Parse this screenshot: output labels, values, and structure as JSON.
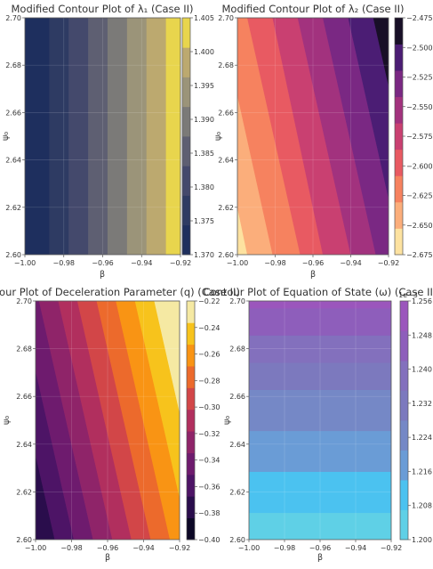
{
  "chart_data": [
    {
      "type": "contour",
      "title": "Modified Contour Plot of λ₁ (Case II)",
      "xlabel": "β",
      "ylabel": "ψ₀",
      "xlim": [
        -1.0,
        -0.92
      ],
      "ylim": [
        2.6,
        2.7
      ],
      "x_ticks": [
        "−1.00",
        "−0.98",
        "−0.96",
        "−0.94",
        "−0.92"
      ],
      "y_ticks": [
        "2.60",
        "2.62",
        "2.64",
        "2.66",
        "2.68",
        "2.70"
      ],
      "colorbar_ticks": [
        "1.405",
        "1.400",
        "1.395",
        "1.390",
        "1.385",
        "1.380",
        "1.375",
        "1.370"
      ],
      "colormap": "cividis",
      "colors": [
        "#1e2f5e",
        "#2e3b63",
        "#44496c",
        "#5e5f72",
        "#7b7a78",
        "#9b9479",
        "#bca96f",
        "#e8d54d"
      ],
      "bands": [
        {
          "x0": -1.0,
          "x1": -0.9875
        },
        {
          "x0": -0.9875,
          "x1": -0.9775
        },
        {
          "x0": -0.9775,
          "x1": -0.9675
        },
        {
          "x0": -0.9675,
          "x1": -0.9575
        },
        {
          "x0": -0.9575,
          "x1": -0.9475
        },
        {
          "x0": -0.9475,
          "x1": -0.9375
        },
        {
          "x0": -0.9375,
          "x1": -0.9275
        },
        {
          "x0": -0.9275,
          "x1": -0.92
        }
      ]
    },
    {
      "type": "contour",
      "title": "Modified Contour Plot of λ₂ (Case II)",
      "xlabel": "β",
      "ylabel": "ψ₀",
      "xlim": [
        -1.0,
        -0.92
      ],
      "ylim": [
        2.6,
        2.7
      ],
      "x_ticks": [
        "−1.00",
        "−0.98",
        "−0.96",
        "−0.94",
        "−0.92"
      ],
      "y_ticks": [
        "2.60",
        "2.62",
        "2.64",
        "2.66",
        "2.68",
        "2.70"
      ],
      "colorbar_ticks": [
        "−2.475",
        "−2.500",
        "−2.525",
        "−2.550",
        "−2.575",
        "−2.600",
        "−2.625",
        "−2.650",
        "−2.675"
      ],
      "colormap": "magma",
      "colors": [
        "#fde2a0",
        "#fbae7b",
        "#f6825f",
        "#e85a62",
        "#c94071",
        "#a2327e",
        "#7a2883",
        "#4b1d74",
        "#180f27"
      ],
      "band_lines": [
        {
          "y": 2.6,
          "x": [
            -0.9947,
            -0.9813,
            -0.9667,
            -0.9547,
            -0.94,
            -0.9267,
            -0.9133,
            -0.9
          ]
        },
        {
          "y": 2.7,
          "x": [
            -1.021,
            -1.009,
            -0.9947,
            -0.9813,
            -0.968,
            -0.9547,
            -0.9413,
            -0.928
          ]
        }
      ]
    },
    {
      "type": "contour",
      "title": "Contour Plot of Deceleration Parameter (q) (Case II)",
      "xlabel": "β",
      "ylabel": "ψ₀",
      "xlim": [
        -1.0,
        -0.92
      ],
      "ylim": [
        2.6,
        2.7
      ],
      "x_ticks": [
        "−1.00",
        "−0.98",
        "−0.96",
        "−0.94",
        "−0.92"
      ],
      "y_ticks": [
        "2.60",
        "2.62",
        "2.64",
        "2.66",
        "2.68",
        "2.70"
      ],
      "colorbar_ticks": [
        "−0.22",
        "−0.24",
        "−0.26",
        "−0.28",
        "−0.30",
        "−0.32",
        "−0.34",
        "−0.36",
        "−0.38",
        "−0.40"
      ],
      "colormap": "inferno",
      "colors": [
        "#0c0826",
        "#2a0d4c",
        "#4d1466",
        "#6e1b6e",
        "#8f2469",
        "#b12f5e",
        "#d24648",
        "#ec6a2c",
        "#f99414",
        "#f7c31c",
        "#f5e9a3"
      ],
      "band_lines": [
        {
          "y": 2.6,
          "x": [
            -1.0,
            -0.9893,
            -0.9787,
            -0.968,
            -0.9573,
            -0.9467,
            -0.936,
            -0.9253,
            -0.9147,
            -0.904
          ]
        },
        {
          "y": 2.7,
          "x": [
            -1.03,
            -1.0193,
            -1.0087,
            -0.998,
            -0.9873,
            -0.9767,
            -0.966,
            -0.9553,
            -0.9447,
            -0.934
          ]
        }
      ]
    },
    {
      "type": "contour",
      "title": "Contour Plot of Equation of State (ω) (Case II)",
      "xlabel": "β",
      "ylabel": "ψ₀",
      "xlim": [
        -1.0,
        -0.92
      ],
      "ylim": [
        2.6,
        2.7
      ],
      "x_ticks": [
        "−1.00",
        "−0.98",
        "−0.96",
        "−0.94",
        "−0.92"
      ],
      "y_ticks": [
        "2.60",
        "2.62",
        "2.64",
        "2.66",
        "2.68",
        "2.70"
      ],
      "colorbar_ticks": [
        "1.256",
        "1.248",
        "1.240",
        "1.232",
        "1.224",
        "1.216",
        "1.208",
        "1.200"
      ],
      "colorbar_offset": "1e−3",
      "colormap": "cool",
      "colors": [
        "#5fd0e6",
        "#4bc2f0",
        "#6a9cd6",
        "#7588c6",
        "#7c79be",
        "#8370bd",
        "#8e5ebb",
        "#9b56bc"
      ],
      "bands": [
        {
          "y0": 2.6,
          "y1": 2.6114
        },
        {
          "y0": 2.6114,
          "y1": 2.6286
        },
        {
          "y0": 2.6286,
          "y1": 2.6457
        },
        {
          "y0": 2.6457,
          "y1": 2.6629
        },
        {
          "y0": 2.6629,
          "y1": 2.6743
        },
        {
          "y0": 2.6743,
          "y1": 2.6857
        },
        {
          "y0": 2.6857,
          "y1": 2.6971
        },
        {
          "y0": 2.6971,
          "y1": 2.7
        }
      ]
    }
  ]
}
